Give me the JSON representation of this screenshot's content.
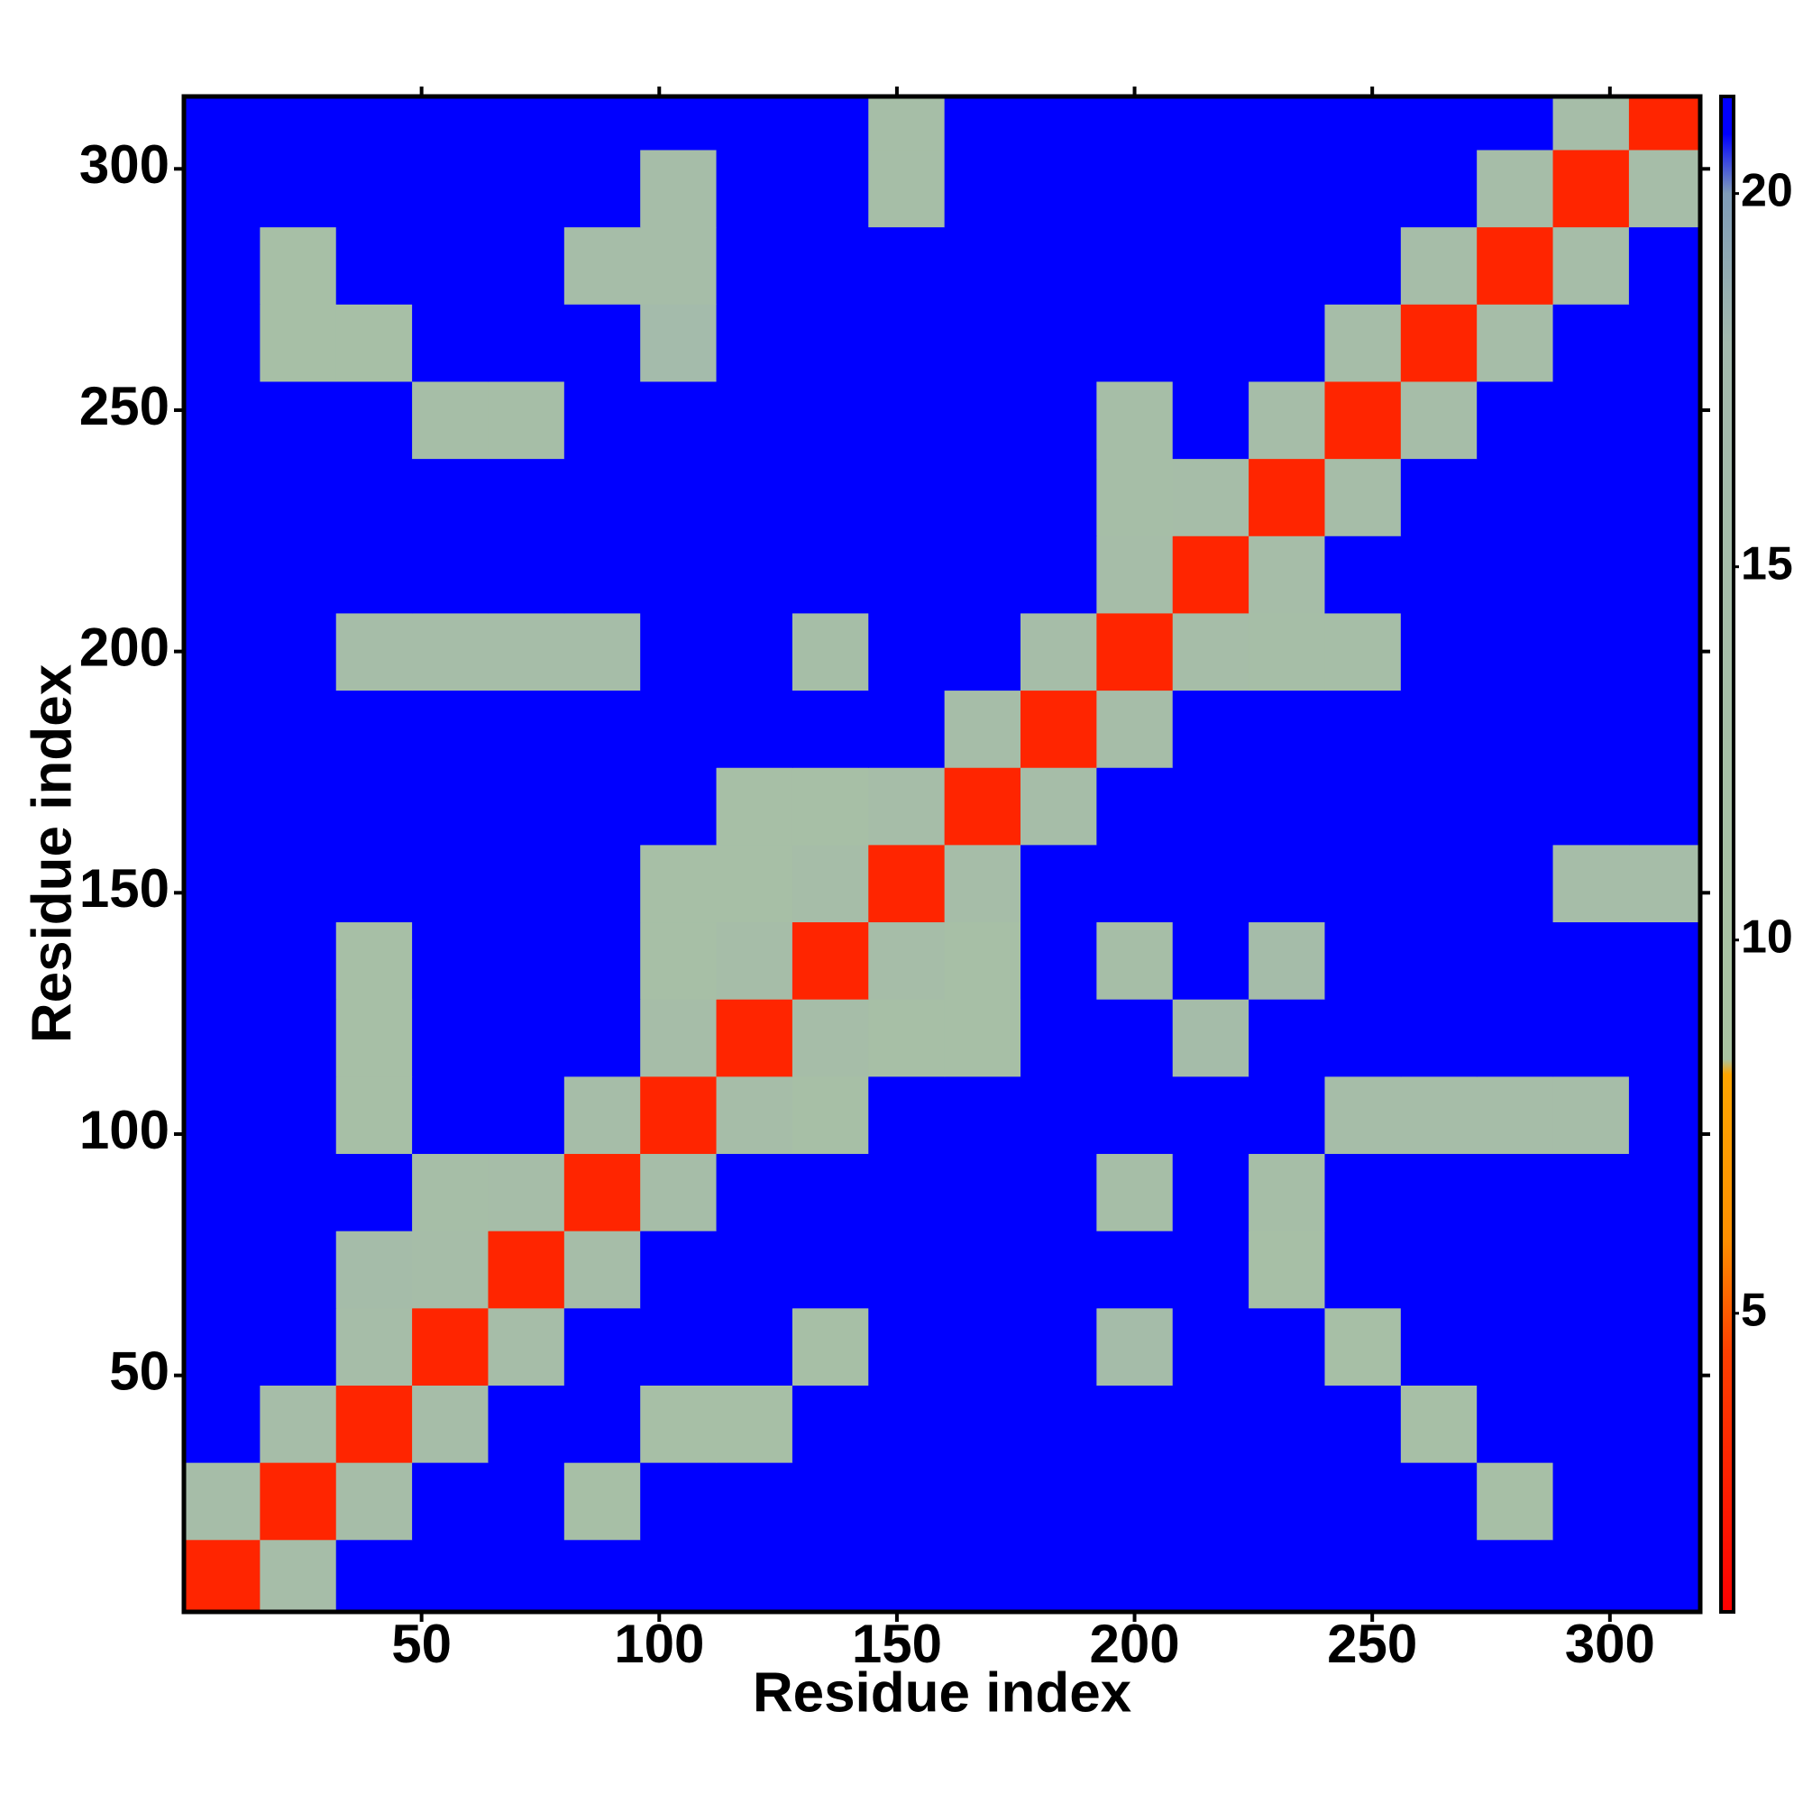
{
  "chart_data": {
    "type": "heatmap",
    "xlabel": "Residue index",
    "ylabel": "Residue index",
    "x": [
      8,
      24,
      40,
      56,
      72,
      88,
      104,
      120,
      136,
      152,
      168,
      184,
      200,
      216,
      232,
      248,
      264,
      280,
      296,
      312
    ],
    "y": [
      8,
      24,
      40,
      56,
      72,
      88,
      104,
      120,
      136,
      152,
      168,
      184,
      200,
      216,
      232,
      248,
      264,
      280,
      296,
      312
    ],
    "z": [
      [
        3,
        14,
        21,
        21,
        21,
        21,
        21,
        21,
        21,
        21,
        21,
        21,
        21,
        21,
        21,
        21,
        21,
        21,
        21,
        21
      ],
      [
        14,
        3,
        14,
        21,
        21,
        12,
        21,
        21,
        21,
        21,
        21,
        21,
        21,
        21,
        21,
        21,
        21,
        12,
        21,
        21
      ],
      [
        21,
        14,
        3,
        14,
        21,
        21,
        12,
        12,
        21,
        21,
        21,
        21,
        21,
        21,
        21,
        21,
        12,
        21,
        21,
        21
      ],
      [
        21,
        21,
        14,
        3,
        14,
        21,
        21,
        21,
        12,
        21,
        21,
        21,
        15,
        21,
        21,
        12,
        21,
        21,
        21,
        21
      ],
      [
        21,
        21,
        15,
        14,
        3,
        14,
        21,
        21,
        21,
        21,
        21,
        21,
        21,
        21,
        12,
        21,
        21,
        21,
        21,
        21
      ],
      [
        21,
        21,
        21,
        13,
        14,
        3,
        14,
        21,
        21,
        21,
        21,
        21,
        13,
        21,
        13,
        21,
        21,
        21,
        21,
        21
      ],
      [
        21,
        21,
        12,
        21,
        21,
        14,
        3,
        14,
        12,
        21,
        21,
        21,
        21,
        21,
        21,
        14,
        14,
        14,
        14,
        21
      ],
      [
        21,
        21,
        12,
        21,
        21,
        21,
        14,
        3,
        14,
        12,
        12,
        21,
        21,
        15,
        21,
        21,
        21,
        21,
        21,
        21
      ],
      [
        21,
        21,
        12,
        21,
        21,
        21,
        12,
        14,
        3,
        14,
        12,
        21,
        13,
        21,
        15,
        21,
        21,
        21,
        21,
        21
      ],
      [
        21,
        21,
        21,
        21,
        21,
        21,
        12,
        12,
        14,
        3,
        14,
        21,
        21,
        21,
        21,
        21,
        21,
        21,
        14,
        14
      ],
      [
        21,
        21,
        21,
        21,
        21,
        21,
        21,
        12,
        12,
        14,
        3,
        14,
        21,
        21,
        21,
        21,
        21,
        21,
        21,
        21
      ],
      [
        21,
        21,
        21,
        21,
        21,
        21,
        21,
        21,
        21,
        21,
        14,
        3,
        14,
        21,
        21,
        21,
        21,
        21,
        21,
        21
      ],
      [
        21,
        21,
        14,
        14,
        14,
        14,
        21,
        21,
        13,
        21,
        21,
        14,
        3,
        14,
        13,
        13,
        21,
        21,
        21,
        21
      ],
      [
        21,
        21,
        21,
        21,
        21,
        21,
        21,
        21,
        21,
        21,
        21,
        21,
        14,
        3,
        14,
        21,
        21,
        21,
        21,
        21
      ],
      [
        21,
        21,
        21,
        21,
        21,
        21,
        21,
        21,
        21,
        21,
        21,
        21,
        13,
        14,
        3,
        14,
        21,
        21,
        21,
        21
      ],
      [
        21,
        21,
        21,
        13,
        13,
        21,
        21,
        21,
        21,
        21,
        21,
        21,
        13,
        21,
        14,
        3,
        14,
        21,
        21,
        21
      ],
      [
        21,
        12,
        12,
        21,
        21,
        21,
        16,
        21,
        21,
        21,
        21,
        21,
        21,
        21,
        21,
        14,
        3,
        14,
        21,
        21
      ],
      [
        21,
        12,
        21,
        21,
        21,
        14,
        14,
        21,
        21,
        21,
        21,
        21,
        21,
        21,
        21,
        21,
        14,
        3,
        14,
        21
      ],
      [
        21,
        21,
        21,
        21,
        21,
        21,
        14,
        21,
        21,
        13,
        21,
        21,
        21,
        21,
        21,
        21,
        21,
        14,
        3,
        14
      ],
      [
        21,
        21,
        21,
        21,
        21,
        21,
        21,
        21,
        21,
        13,
        21,
        21,
        21,
        21,
        21,
        21,
        21,
        21,
        14,
        3
      ]
    ],
    "xlim": [
      0,
      319
    ],
    "ylim": [
      1,
      315
    ],
    "xticks": [
      50,
      100,
      150,
      200,
      250,
      300
    ],
    "yticks": [
      50,
      100,
      150,
      200,
      250,
      300
    ],
    "zlim": [
      1,
      21.3
    ],
    "colorbar_ticks": [
      5,
      10,
      15,
      20
    ],
    "colorscale": [
      [
        1,
        "#ff0000"
      ],
      [
        4.5,
        "#ff4000"
      ],
      [
        6,
        "#ff9000"
      ],
      [
        8.2,
        "#ffa500"
      ],
      [
        8.4,
        "#a9c3a1"
      ],
      [
        18,
        "#a3b9ad"
      ],
      [
        20,
        "#7f9cb8"
      ],
      [
        20.8,
        "#0000ff"
      ]
    ]
  }
}
